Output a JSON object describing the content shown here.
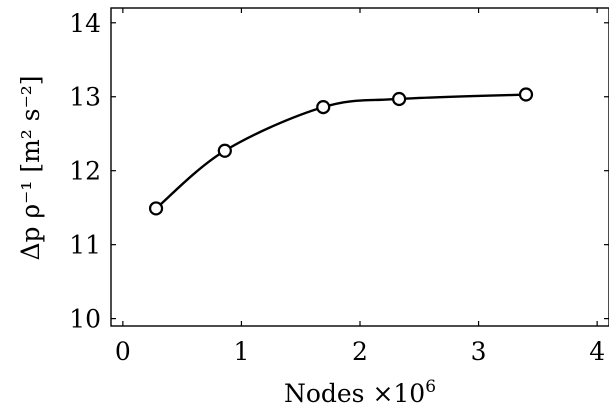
{
  "chart_data": {
    "type": "line",
    "xlabel": "Nodes ×10",
    "xlabel_sup": "6",
    "ylabel": "Δp ρ⁻¹ [m² s⁻²]",
    "xlim": [
      -0.1,
      4.1
    ],
    "ylim": [
      9.9,
      14.2
    ],
    "xticks": [
      0,
      1,
      2,
      3,
      4
    ],
    "yticks": [
      10,
      11,
      12,
      13,
      14
    ],
    "grid": false,
    "series": [
      {
        "marker": "circle",
        "color": "#000000",
        "x": [
          0.28,
          0.86,
          1.69,
          2.33,
          3.4
        ],
        "y": [
          11.49,
          12.27,
          12.86,
          12.97,
          13.03
        ]
      }
    ]
  }
}
